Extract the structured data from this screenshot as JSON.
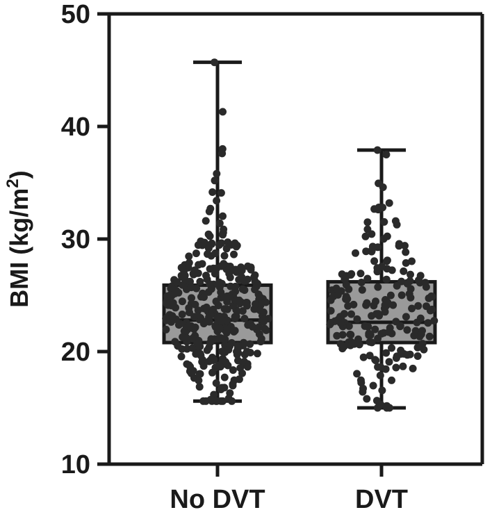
{
  "chart_data": {
    "type": "box",
    "ylabel": "BMI (kg/m²)",
    "ylabel_main": "BMI (kg/m",
    "ylabel_sup": "2",
    "ylabel_close": ")",
    "ylim": [
      10,
      50
    ],
    "yticks": [
      10,
      20,
      30,
      40,
      50
    ],
    "categories": [
      "No DVT",
      "DVT"
    ],
    "grid": false,
    "legend": "none",
    "box_color": "#9a9a9a",
    "point_color": "#2a2a2a",
    "boxes": [
      {
        "category": "No DVT",
        "min": 15.6,
        "q1": 20.8,
        "median": 22.8,
        "q3": 25.9,
        "max": 45.7,
        "n_points": 360
      },
      {
        "category": "DVT",
        "min": 15.0,
        "q1": 20.8,
        "median": 22.6,
        "q3": 26.2,
        "max": 37.9,
        "n_points": 200
      }
    ]
  }
}
